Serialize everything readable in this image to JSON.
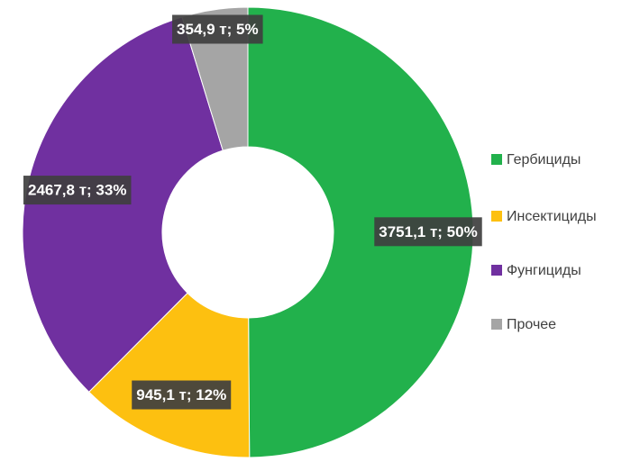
{
  "chart_data": {
    "type": "donut",
    "categories": [
      "Гербициды",
      "Инсектициды",
      "Фунгициды",
      "Прочее"
    ],
    "values": [
      3751.1,
      945.1,
      2467.8,
      354.9
    ],
    "value_labels": [
      "3751,1 т; 50%",
      "945,1 т; 12%",
      "2467,8 т; 33%",
      "354,9 т; 5%"
    ],
    "colors": [
      "#22b14c",
      "#fdc010",
      "#7030a0",
      "#a5a5a5"
    ],
    "legend": "right"
  }
}
